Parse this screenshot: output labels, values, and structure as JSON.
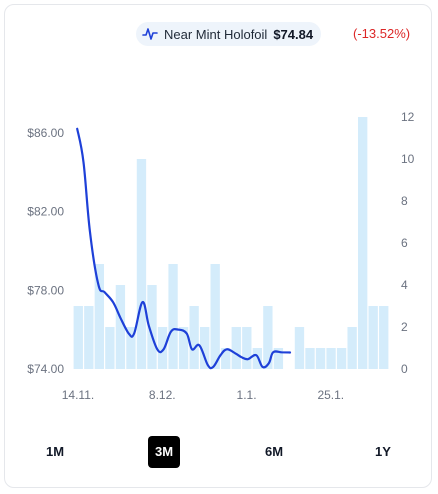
{
  "legend": {
    "series_name": "Near Mint Holofoil",
    "price": "$74.84",
    "change": "(-13.52%)",
    "icon": "line-chart-icon"
  },
  "colors": {
    "line": "#1e40d8",
    "bar": "#d4ecfb",
    "change_negative": "#dc2626",
    "active_button": "#000000"
  },
  "range_buttons": [
    {
      "label": "1M",
      "active": false
    },
    {
      "label": "3M",
      "active": true
    },
    {
      "label": "6M",
      "active": false
    },
    {
      "label": "1Y",
      "active": false
    }
  ],
  "chart_data": {
    "type": "bar+line",
    "x_tick_labels": [
      "14.11.",
      "8.12.",
      "1.1.",
      "25.1."
    ],
    "x_tick_index": [
      0,
      8,
      16,
      24
    ],
    "y_left": {
      "ticks": [
        "$74.00",
        "$78.00",
        "$82.00",
        "$86.00"
      ],
      "values": [
        74,
        78,
        82,
        86
      ],
      "range": [
        74,
        86.8
      ]
    },
    "y_right": {
      "ticks": [
        "0",
        "2",
        "4",
        "6",
        "8",
        "10",
        "12"
      ],
      "values": [
        0,
        2,
        4,
        6,
        8,
        10,
        12
      ],
      "range": [
        0,
        12
      ]
    },
    "bars": {
      "name": "volume",
      "values": [
        3,
        3,
        5,
        2,
        4,
        2,
        10,
        4,
        2,
        5,
        2,
        3,
        2,
        5,
        1,
        2,
        2,
        1,
        3,
        1,
        0,
        2,
        1,
        1,
        1,
        1,
        2,
        12,
        3,
        3
      ]
    },
    "line": {
      "name": "price",
      "points": [
        {
          "i": 0.4,
          "v": 86.2
        },
        {
          "i": 1.0,
          "v": 84.5
        },
        {
          "i": 1.6,
          "v": 81.0
        },
        {
          "i": 2.4,
          "v": 78.3
        },
        {
          "i": 3.0,
          "v": 77.9
        },
        {
          "i": 3.8,
          "v": 77.4
        },
        {
          "i": 4.5,
          "v": 76.6
        },
        {
          "i": 5.3,
          "v": 75.8
        },
        {
          "i": 5.8,
          "v": 75.8
        },
        {
          "i": 6.6,
          "v": 77.4
        },
        {
          "i": 7.2,
          "v": 76.2
        },
        {
          "i": 8.0,
          "v": 75.0
        },
        {
          "i": 8.6,
          "v": 75.0
        },
        {
          "i": 9.3,
          "v": 75.9
        },
        {
          "i": 10.0,
          "v": 76.0
        },
        {
          "i": 10.8,
          "v": 75.8
        },
        {
          "i": 11.3,
          "v": 75.0
        },
        {
          "i": 12.0,
          "v": 75.2
        },
        {
          "i": 12.8,
          "v": 74.2
        },
        {
          "i": 13.3,
          "v": 74.1
        },
        {
          "i": 14.0,
          "v": 74.7
        },
        {
          "i": 14.6,
          "v": 75.0
        },
        {
          "i": 15.4,
          "v": 74.8
        },
        {
          "i": 16.0,
          "v": 74.6
        },
        {
          "i": 16.6,
          "v": 74.5
        },
        {
          "i": 17.4,
          "v": 74.7
        },
        {
          "i": 18.0,
          "v": 74.1
        },
        {
          "i": 18.6,
          "v": 74.3
        },
        {
          "i": 19.0,
          "v": 74.85
        },
        {
          "i": 19.8,
          "v": 74.85
        },
        {
          "i": 20.6,
          "v": 74.84
        }
      ]
    },
    "grid": false,
    "legend_position": "top-right"
  }
}
